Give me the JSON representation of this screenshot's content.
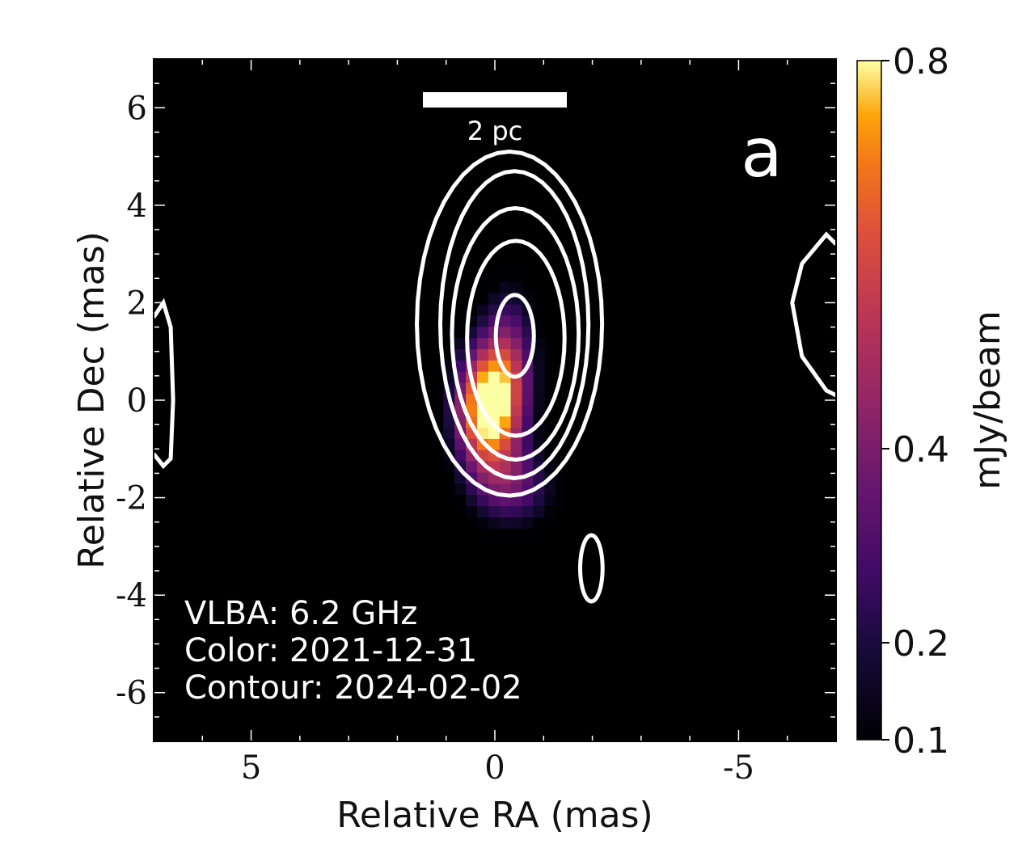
{
  "chart_data": {
    "type": "heatmap",
    "xlabel": "Relative RA (mas)",
    "ylabel": "Relative Dec (mas)",
    "xlim": [
      7,
      -7
    ],
    "ylim": [
      -7,
      7
    ],
    "xticks": [
      5,
      0,
      -5
    ],
    "xtick_labels": [
      "5",
      "0",
      "-5"
    ],
    "yticks": [
      6,
      4,
      2,
      0,
      -2,
      -4,
      -6
    ],
    "ytick_labels": [
      "6",
      "4",
      "2",
      "0",
      "-2",
      "-4",
      "-6"
    ],
    "colormap": "inferno",
    "colorbar": {
      "label": "mJy/beam",
      "range": [
        0.1,
        0.8
      ],
      "ticks": [
        0.8,
        0.4,
        0.2,
        0.1
      ],
      "tick_labels": [
        "0.8",
        "0.4",
        "0.2",
        "0.1"
      ]
    },
    "color_peak": {
      "ra": 0.2,
      "dec": -0.2,
      "value": 0.8
    },
    "contour_color": "#ffffff",
    "contours": [
      {
        "type": "ellipse",
        "ra": -0.3,
        "dec": 1.57,
        "a": 1.9,
        "b": 3.53
      },
      {
        "type": "ellipse",
        "ra": -0.4,
        "dec": 1.55,
        "a": 1.52,
        "b": 3.15
      },
      {
        "type": "ellipse",
        "ra": -0.42,
        "dec": 1.36,
        "a": 1.3,
        "b": 2.58
      },
      {
        "type": "ellipse",
        "ra": -0.43,
        "dec": 1.27,
        "a": 1.0,
        "b": 2.0
      },
      {
        "type": "ellipse",
        "ra": -0.41,
        "dec": 1.32,
        "a": 0.39,
        "b": 0.84
      },
      {
        "type": "ellipse",
        "ra": -1.98,
        "dec": -3.45,
        "a": 0.23,
        "b": 0.68
      },
      {
        "type": "line",
        "points": [
          [
            7.0,
            1.7
          ],
          [
            6.8,
            2.0
          ],
          [
            6.65,
            1.5
          ],
          [
            6.6,
            0
          ],
          [
            6.65,
            -1.2
          ],
          [
            6.8,
            -1.35
          ],
          [
            7.0,
            -1.1
          ]
        ]
      },
      {
        "type": "line",
        "points": [
          [
            -7.0,
            3.2
          ],
          [
            -6.8,
            3.4
          ],
          [
            -6.3,
            2.8
          ],
          [
            -6.1,
            2.0
          ],
          [
            -6.3,
            0.9
          ],
          [
            -6.8,
            0.2
          ],
          [
            -7.0,
            0.1
          ]
        ]
      }
    ],
    "scale_bar": {
      "label": "2 pc"
    },
    "panel_label": "a",
    "annotations": [
      "VLBA: 6.2 GHz",
      "Color: 2021-12-31",
      "Contour: 2024-02-02"
    ]
  }
}
